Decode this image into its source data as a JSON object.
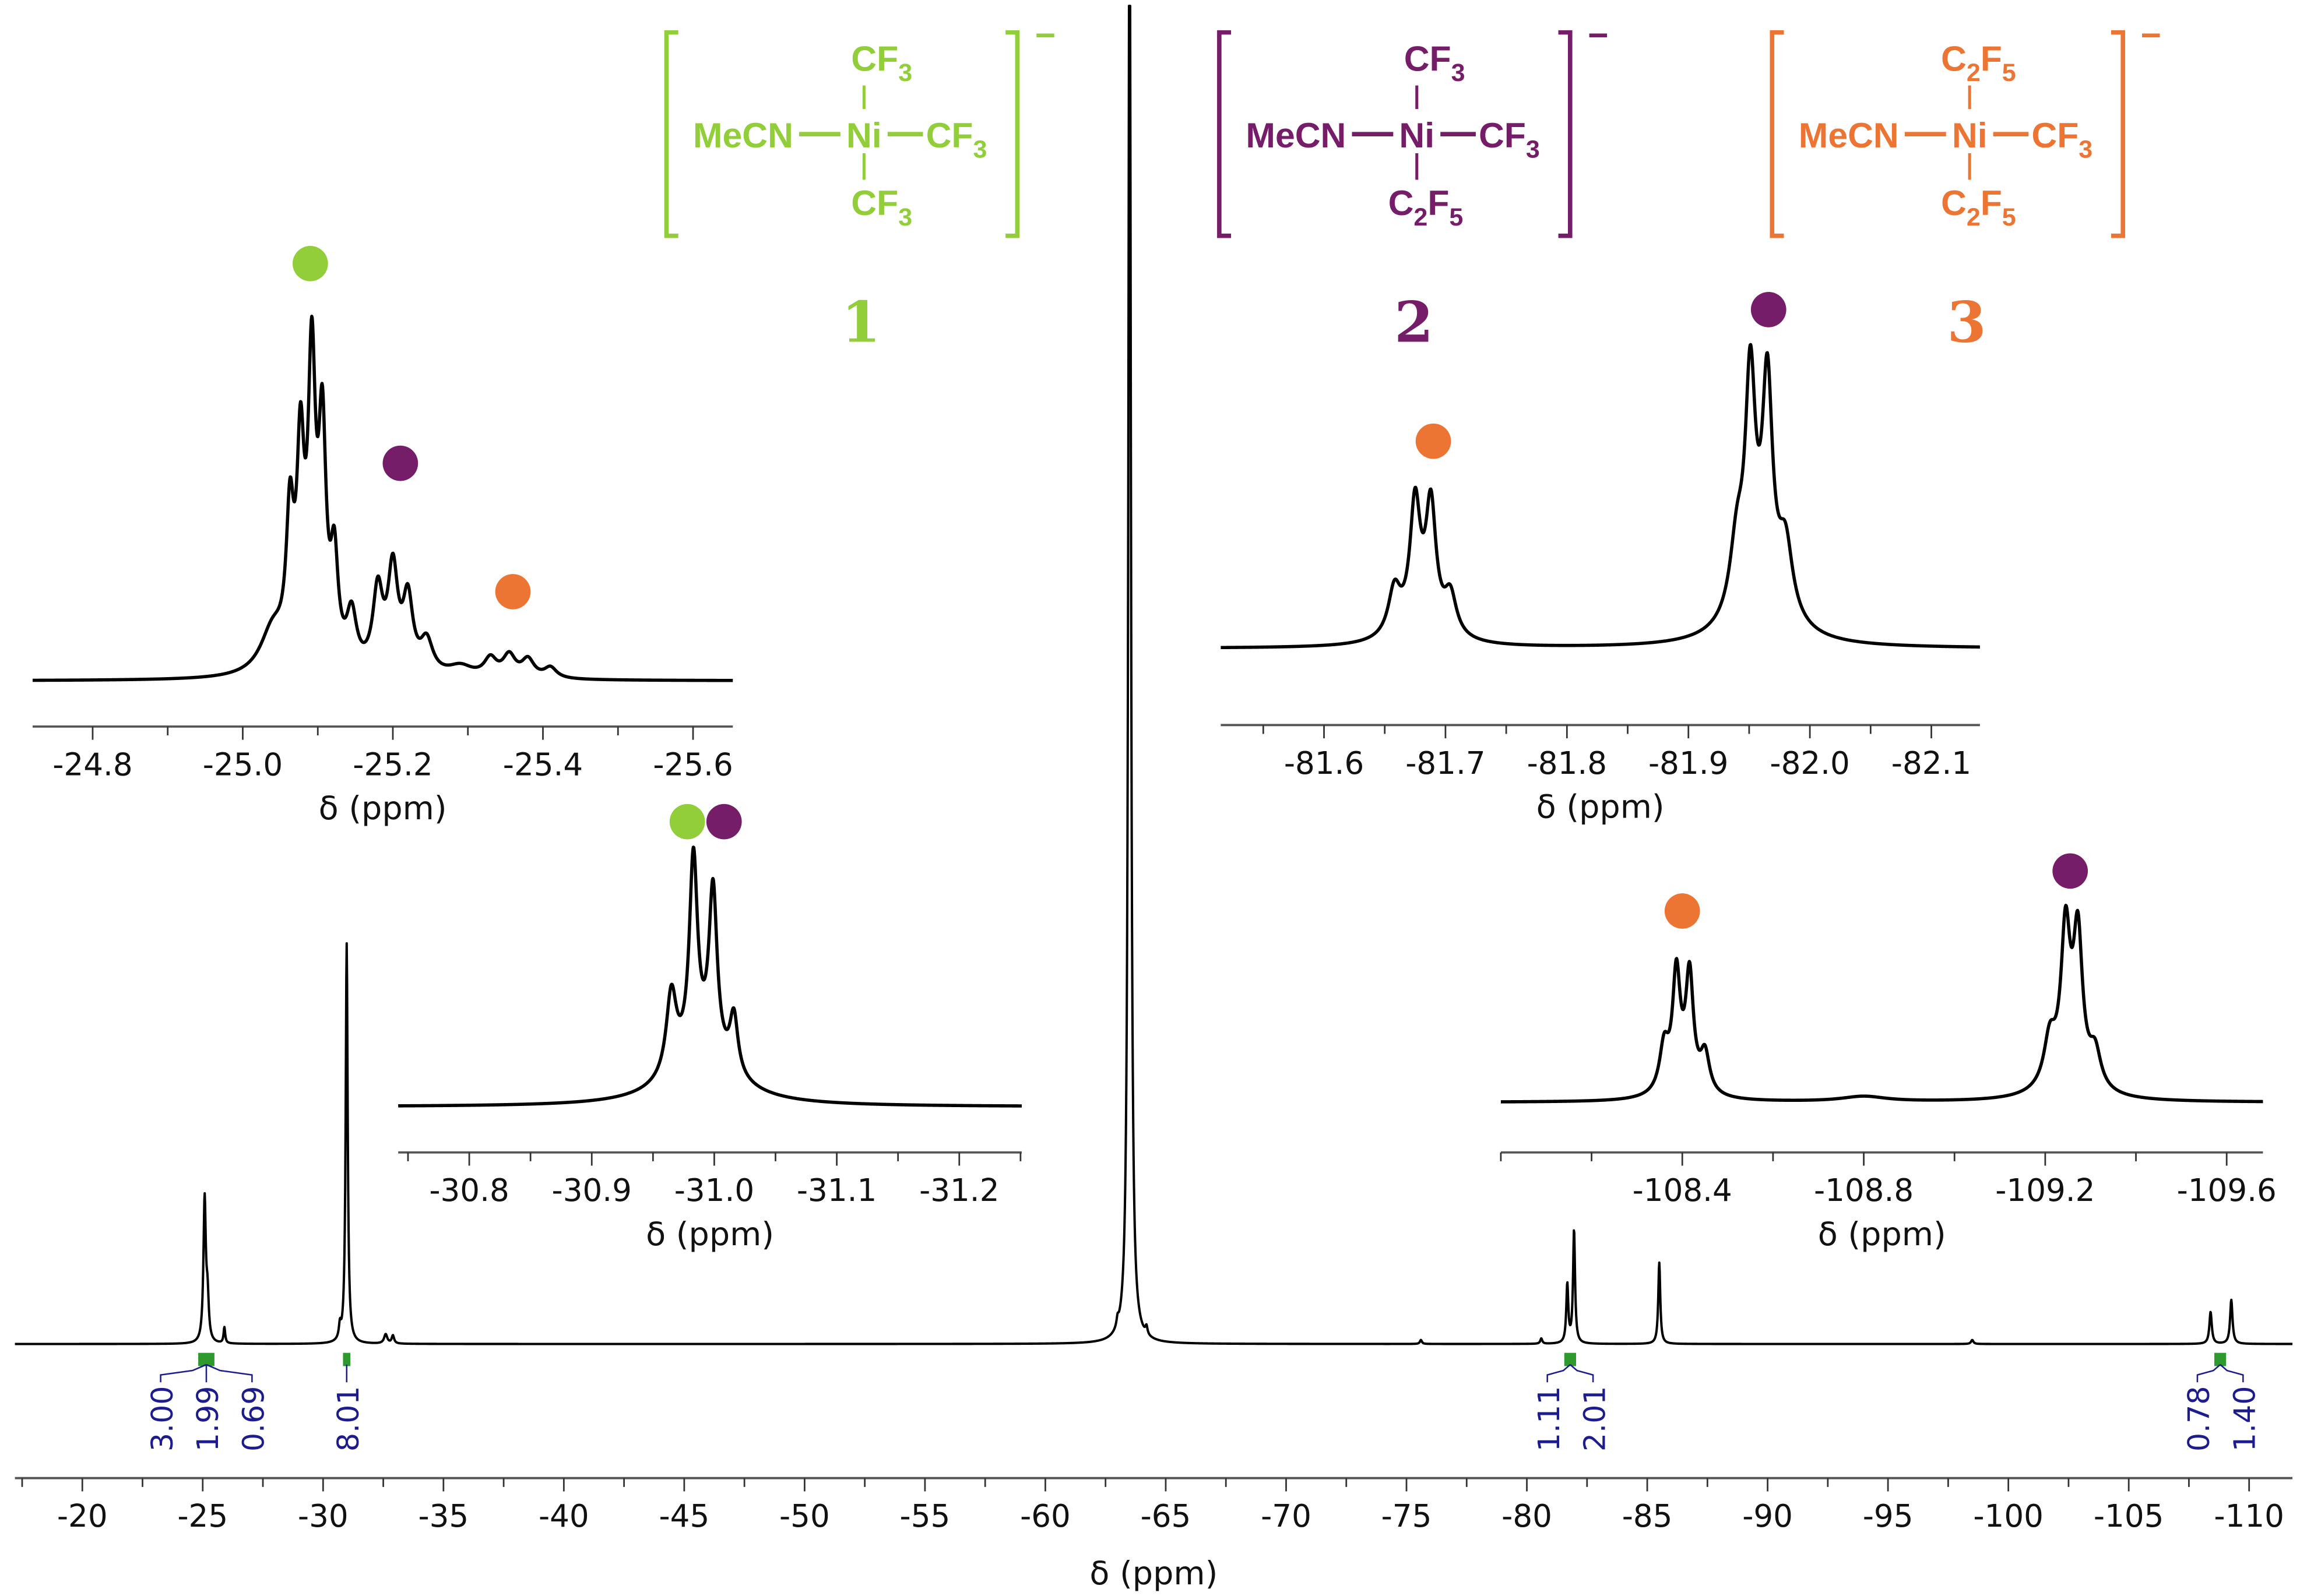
{
  "colors": {
    "compound_1": "#92cd3a",
    "compound_2": "#761d69",
    "compound_3": "#ed7533",
    "integral": "#1c1c8c",
    "integral_marker": "#2e9a2e",
    "trace": "#000000"
  },
  "structures": [
    {
      "label": "1",
      "color_key": "compound_1",
      "left": "MeCN",
      "center": "Ni",
      "right": "CF3",
      "top": "CF3",
      "bottom": "CF3",
      "charge": "−"
    },
    {
      "label": "2",
      "color_key": "compound_2",
      "left": "MeCN",
      "center": "Ni",
      "right": "CF3",
      "top": "CF3",
      "bottom": "C2F5",
      "charge": "−"
    },
    {
      "label": "3",
      "color_key": "compound_3",
      "left": "MeCN",
      "center": "Ni",
      "right": "CF3",
      "top": "C2F5",
      "bottom": "C2F5",
      "charge": "−"
    }
  ],
  "chart_data": [
    {
      "id": "main",
      "type": "line",
      "xlabel": "δ (ppm)",
      "xlim": [
        -17.2,
        -111.8
      ],
      "reversed_x": true,
      "grid": false,
      "xticks": [
        "-20",
        "-25",
        "-30",
        "-35",
        "-40",
        "-45",
        "-50",
        "-55",
        "-60",
        "-65",
        "-70",
        "-75",
        "-80",
        "-85",
        "-90",
        "-95",
        "-100",
        "-105",
        "-110"
      ],
      "peaks_ppm_relintensity_hwhm": [
        [
          -25.08,
          0.107,
          0.06
        ],
        [
          -25.2,
          0.03,
          0.06
        ],
        [
          -25.9,
          0.012,
          0.04
        ],
        [
          -30.98,
          0.3,
          0.05
        ],
        [
          -30.7,
          0.01,
          0.05
        ],
        [
          -32.6,
          0.007,
          0.08
        ],
        [
          -32.9,
          0.006,
          0.06
        ],
        [
          -63.5,
          1.2,
          0.06
        ],
        [
          -63.0,
          0.006,
          0.05
        ],
        [
          -64.2,
          0.006,
          0.05
        ],
        [
          -75.6,
          0.003,
          0.05
        ],
        [
          -80.6,
          0.004,
          0.05
        ],
        [
          -81.68,
          0.044,
          0.05
        ],
        [
          -81.96,
          0.085,
          0.05
        ],
        [
          -85.5,
          0.061,
          0.05
        ],
        [
          -98.5,
          0.003,
          0.06
        ],
        [
          -108.4,
          0.024,
          0.06
        ],
        [
          -109.26,
          0.033,
          0.06
        ]
      ],
      "integrals": [
        {
          "ppm": -25.15,
          "values": [
            "3.00",
            "1.99",
            "0.69"
          ]
        },
        {
          "ppm": -30.98,
          "values": [
            "8.01"
          ]
        },
        {
          "ppm": -81.8,
          "values": [
            "1.11",
            "2.01"
          ]
        },
        {
          "ppm": -108.8,
          "values": [
            "0.78",
            "1.40"
          ]
        }
      ]
    },
    {
      "id": "inset-1",
      "type": "line",
      "xlabel": "δ (ppm)",
      "xlim": [
        -24.72,
        -25.653
      ],
      "xticks": [
        "-24.8",
        "-25.0",
        "-25.2",
        "-25.4",
        "-25.6"
      ],
      "minor_step": 0.1,
      "peaks_ppm_relintensity_hwhm": [
        [
          -25.04,
          0.12,
          0.02
        ],
        [
          -25.063,
          0.38,
          0.006
        ],
        [
          -25.077,
          0.55,
          0.006
        ],
        [
          -25.092,
          0.8,
          0.006
        ],
        [
          -25.106,
          0.62,
          0.006
        ],
        [
          -25.122,
          0.28,
          0.006
        ],
        [
          -25.145,
          0.15,
          0.008
        ],
        [
          -25.18,
          0.22,
          0.008
        ],
        [
          -25.2,
          0.28,
          0.008
        ],
        [
          -25.22,
          0.2,
          0.008
        ],
        [
          -25.245,
          0.09,
          0.01
        ],
        [
          -25.29,
          0.03,
          0.02
        ],
        [
          -25.33,
          0.05,
          0.01
        ],
        [
          -25.355,
          0.06,
          0.01
        ],
        [
          -25.38,
          0.05,
          0.01
        ],
        [
          -25.41,
          0.03,
          0.01
        ]
      ],
      "markers": [
        {
          "ppm": -25.09,
          "level": 1.17,
          "color_key": "compound_1"
        },
        {
          "ppm": -25.21,
          "level": 0.61,
          "color_key": "compound_2"
        },
        {
          "ppm": -25.36,
          "level": 0.25,
          "color_key": "compound_3"
        }
      ]
    },
    {
      "id": "inset-2",
      "type": "line",
      "xlabel": "δ (ppm)",
      "xlim": [
        -30.742,
        -31.251
      ],
      "xticks": [
        "-30.8",
        "-30.9",
        "-31.0",
        "-31.1",
        "-31.2"
      ],
      "minor_step": 0.05,
      "peaks_ppm_relintensity_hwhm": [
        [
          -30.99,
          0.22,
          0.03
        ],
        [
          -30.965,
          0.35,
          0.005
        ],
        [
          -30.983,
          0.85,
          0.004
        ],
        [
          -30.999,
          0.72,
          0.004
        ],
        [
          -31.016,
          0.25,
          0.004
        ]
      ],
      "markers": [
        {
          "ppm": -30.978,
          "level": 1.24,
          "color_key": "compound_1"
        },
        {
          "ppm": -31.008,
          "level": 1.24,
          "color_key": "compound_2"
        }
      ]
    },
    {
      "id": "inset-3",
      "type": "line",
      "xlabel": "δ (ppm)",
      "xlim": [
        -81.515,
        -82.14
      ],
      "xticks": [
        "-81.6",
        "-81.7",
        "-81.8",
        "-81.9",
        "-82.0",
        "-82.1"
      ],
      "minor_step": 0.05,
      "peaks_ppm_relintensity_hwhm": [
        [
          -81.68,
          0.08,
          0.02
        ],
        [
          -81.658,
          0.16,
          0.006
        ],
        [
          -81.675,
          0.42,
          0.005
        ],
        [
          -81.688,
          0.42,
          0.005
        ],
        [
          -81.704,
          0.14,
          0.006
        ],
        [
          -81.96,
          0.15,
          0.025
        ],
        [
          -81.94,
          0.25,
          0.007
        ],
        [
          -81.951,
          0.78,
          0.005
        ],
        [
          -81.965,
          0.76,
          0.005
        ],
        [
          -81.98,
          0.25,
          0.007
        ]
      ],
      "markers": [
        {
          "ppm": -81.69,
          "level": 0.74,
          "color_key": "compound_3"
        },
        {
          "ppm": -81.966,
          "level": 1.21,
          "color_key": "compound_2"
        }
      ]
    },
    {
      "id": "inset-4",
      "type": "line",
      "xlabel": "δ (ppm)",
      "xlim": [
        -108.0,
        -109.68
      ],
      "xticks": [
        "-108.4",
        "-108.8",
        "-109.2",
        "-109.6"
      ],
      "minor_step": 0.2,
      "peaks_ppm_relintensity_hwhm": [
        [
          -108.4,
          0.1,
          0.04
        ],
        [
          -108.36,
          0.25,
          0.012
        ],
        [
          -108.387,
          0.62,
          0.01
        ],
        [
          -108.416,
          0.62,
          0.01
        ],
        [
          -108.45,
          0.22,
          0.012
        ],
        [
          -108.8,
          0.03,
          0.06
        ],
        [
          -109.25,
          0.15,
          0.05
        ],
        [
          -109.21,
          0.25,
          0.015
        ],
        [
          -109.245,
          0.8,
          0.012
        ],
        [
          -109.272,
          0.8,
          0.012
        ],
        [
          -109.31,
          0.2,
          0.015
        ]
      ],
      "markers": [
        {
          "ppm": -108.4,
          "level": 1.1,
          "color_key": "compound_3"
        },
        {
          "ppm": -109.255,
          "level": 1.33,
          "color_key": "compound_2"
        }
      ]
    }
  ]
}
